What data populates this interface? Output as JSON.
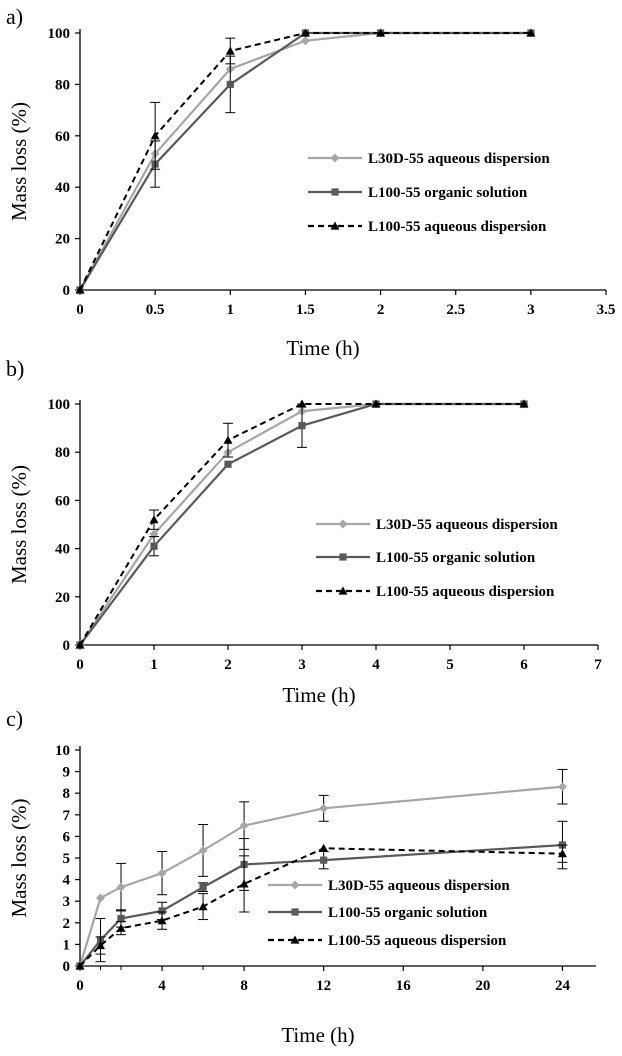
{
  "colors": {
    "light": "#a6a6a6",
    "dark": "#595959",
    "black": "#000000"
  },
  "chart_data": [
    {
      "panel": "a)",
      "type": "line",
      "xlabel": "Time (h)",
      "ylabel": "Mass loss (%)",
      "xlim": [
        0,
        3.5
      ],
      "ylim": [
        0,
        100
      ],
      "xticks": [
        0,
        0.5,
        1,
        1.5,
        2,
        2.5,
        3,
        3.5
      ],
      "xtick_labels": [
        "0",
        "0.5",
        "1",
        "1.5",
        "2",
        "2.5",
        "3",
        "3.5"
      ],
      "yticks": [
        0,
        20,
        40,
        60,
        80,
        100
      ],
      "legend_position": "middle-right",
      "series": [
        {
          "name": "L30D-55 aqueous dispersion",
          "marker": "diamond",
          "color": "#a6a6a6",
          "dash": "solid",
          "x": [
            0,
            0.5,
            1,
            1.5,
            2,
            3
          ],
          "y": [
            0,
            53,
            86,
            97,
            100,
            100
          ],
          "err": [
            0,
            0,
            0,
            0,
            0,
            0
          ]
        },
        {
          "name": "L100-55 organic solution",
          "marker": "square",
          "color": "#595959",
          "dash": "solid",
          "x": [
            0,
            0.5,
            1,
            1.5,
            2,
            3
          ],
          "y": [
            0,
            49,
            80,
            100,
            100,
            100
          ],
          "err": [
            0,
            9,
            11,
            0,
            0,
            0
          ]
        },
        {
          "name": "L100-55 aqueous dispersion",
          "marker": "triangle",
          "color": "#000000",
          "dash": "dashed",
          "x": [
            0,
            0.5,
            1,
            1.5,
            2,
            3
          ],
          "y": [
            0,
            60,
            93,
            100,
            100,
            100
          ],
          "err": [
            0,
            13,
            5,
            0,
            0,
            0
          ]
        }
      ]
    },
    {
      "panel": "b)",
      "type": "line",
      "xlabel": "Time (h)",
      "ylabel": "Mass loss (%)",
      "xlim": [
        0,
        7
      ],
      "ylim": [
        0,
        100
      ],
      "xticks": [
        0,
        1,
        2,
        3,
        4,
        5,
        6,
        7
      ],
      "xtick_labels": [
        "0",
        "1",
        "2",
        "3",
        "4",
        "5",
        "6",
        "7"
      ],
      "yticks": [
        0,
        20,
        40,
        60,
        80,
        100
      ],
      "legend_position": "middle-right",
      "series": [
        {
          "name": "L30D-55 aqueous dispersion",
          "marker": "diamond",
          "color": "#a6a6a6",
          "dash": "solid",
          "x": [
            0,
            1,
            2,
            3,
            4,
            6
          ],
          "y": [
            0,
            46,
            80,
            97,
            100,
            100
          ],
          "err": [
            0,
            0,
            0,
            0,
            0,
            0
          ]
        },
        {
          "name": "L100-55 organic solution",
          "marker": "square",
          "color": "#595959",
          "dash": "solid",
          "x": [
            0,
            1,
            2,
            3,
            4,
            6
          ],
          "y": [
            0,
            41,
            75,
            91,
            100,
            100
          ],
          "err": [
            0,
            4,
            0,
            9,
            0,
            0
          ]
        },
        {
          "name": "L100-55 aqueous dispersion",
          "marker": "triangle",
          "color": "#000000",
          "dash": "dashed",
          "x": [
            0,
            1,
            2,
            3,
            4,
            6
          ],
          "y": [
            0,
            52,
            85,
            100,
            100,
            100
          ],
          "err": [
            0,
            4,
            7,
            0,
            0,
            0
          ]
        }
      ]
    },
    {
      "panel": "c)",
      "type": "line",
      "xlabel": "Time (h)",
      "ylabel": "Mass loss (%)",
      "xticks": [
        0,
        4,
        8,
        12,
        16,
        20,
        24
      ],
      "xtick_labels": [
        "0",
        "4",
        "8",
        "12",
        "16",
        "20",
        "24"
      ],
      "ylim": [
        0,
        10
      ],
      "yticks": [
        0,
        1,
        2,
        3,
        4,
        5,
        6,
        7,
        8,
        9,
        10
      ],
      "legend_position": "bottom-right",
      "series": [
        {
          "name": "L30D-55 aqueous dispersion",
          "marker": "diamond",
          "color": "#a6a6a6",
          "dash": "solid",
          "x": [
            0,
            1,
            2,
            4,
            6,
            8,
            12,
            24
          ],
          "y": [
            0,
            3.15,
            3.65,
            4.3,
            5.35,
            6.5,
            7.3,
            8.3
          ],
          "err": [
            0,
            0,
            1.1,
            1.0,
            1.2,
            1.1,
            0.6,
            0.8
          ]
        },
        {
          "name": "L100-55 organic solution",
          "marker": "square",
          "color": "#595959",
          "dash": "solid",
          "x": [
            0,
            1,
            2,
            4,
            6,
            8,
            12,
            24
          ],
          "y": [
            0,
            1.2,
            2.2,
            2.55,
            3.65,
            4.7,
            4.9,
            5.6
          ],
          "err": [
            0,
            1.0,
            0.4,
            0.4,
            0.2,
            1.2,
            0.4,
            1.1
          ]
        },
        {
          "name": "L100-55 aqueous dispersion",
          "marker": "triangle",
          "color": "#000000",
          "dash": "dashed",
          "x": [
            0,
            1,
            2,
            4,
            6,
            8,
            12,
            24
          ],
          "y": [
            0,
            0.95,
            1.75,
            2.1,
            2.75,
            3.8,
            5.45,
            5.2
          ],
          "err": [
            0,
            0.4,
            0.3,
            0.4,
            0.6,
            1.3,
            0,
            0.4
          ]
        }
      ]
    }
  ]
}
